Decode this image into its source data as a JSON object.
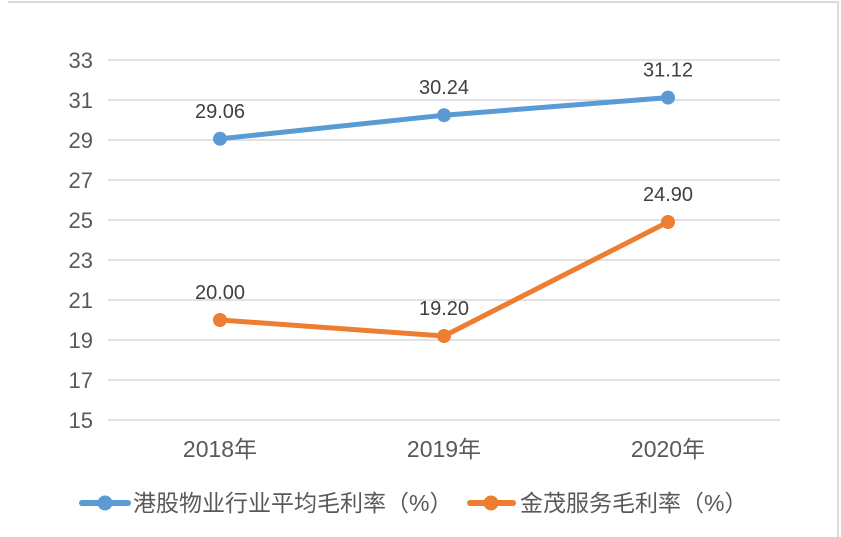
{
  "chart_data": {
    "type": "line",
    "categories": [
      "2018年",
      "2019年",
      "2020年"
    ],
    "series": [
      {
        "name": "港股物业行业平均毛利率（%）",
        "values": [
          29.06,
          30.24,
          31.12
        ],
        "data_labels": [
          "29.06",
          "30.24",
          "31.12"
        ],
        "color": "#5B9BD5"
      },
      {
        "name": "金茂服务毛利率（%）",
        "values": [
          20.0,
          19.2,
          24.9
        ],
        "data_labels": [
          "20.00",
          "19.20",
          "24.90"
        ],
        "color": "#ED7D31"
      }
    ],
    "title": "",
    "xlabel": "",
    "ylabel": "",
    "ylim": [
      15,
      33
    ],
    "yticks": [
      33,
      31,
      29,
      27,
      25,
      23,
      21,
      19,
      17,
      15
    ],
    "grid": true,
    "legend_position": "bottom",
    "marker": "circle"
  },
  "style": {
    "grid_color": "#D9D9D9",
    "border_color": "#D9D9D9",
    "axis_label_color": "#595959",
    "data_label_color": "#404040",
    "background": "#FFFFFF"
  }
}
